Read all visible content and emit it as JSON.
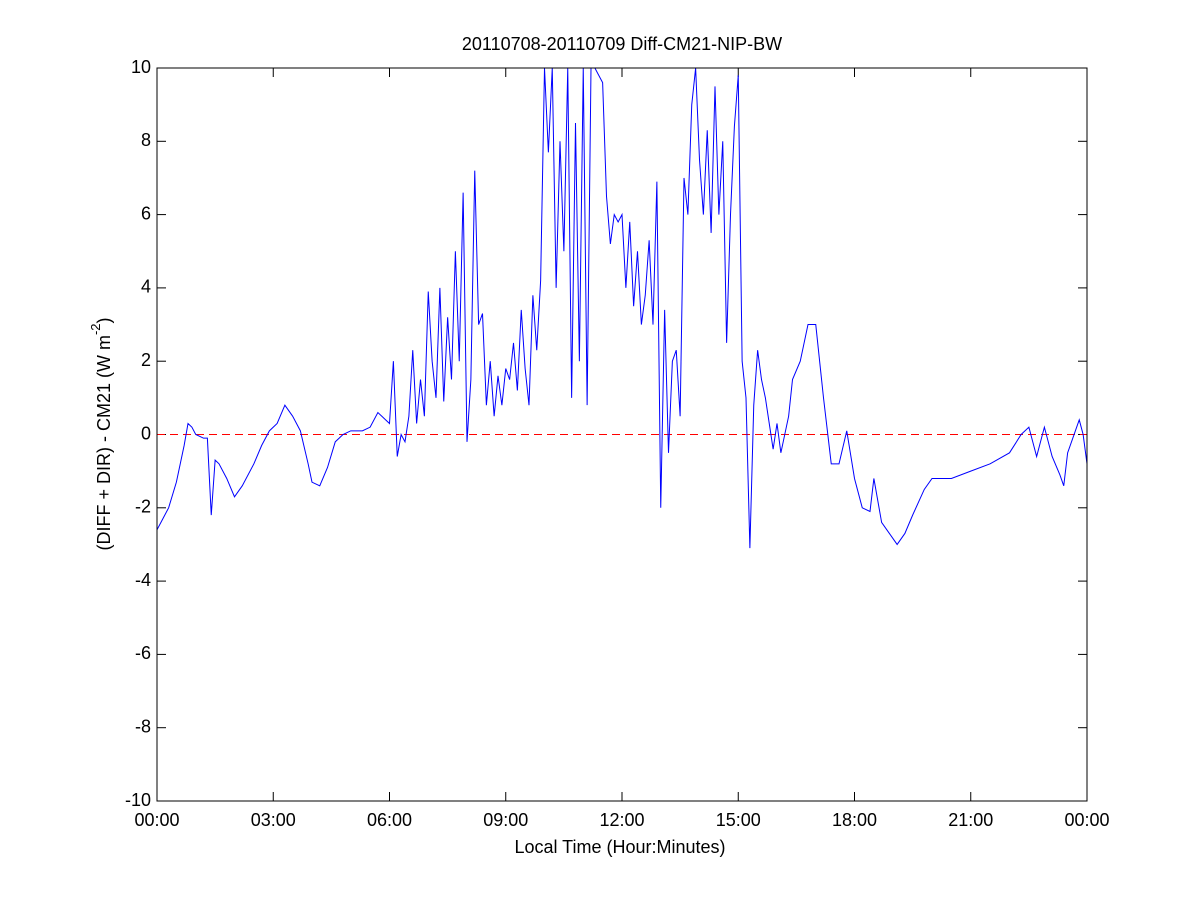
{
  "chart_data": {
    "type": "line",
    "title": "20110708-20110709 Diff-CM21-NIP-BW",
    "xlabel": "Local Time (Hour:Minutes)",
    "ylabel": [
      "(DIFF + DIR) - CM21 (W m",
      "-2",
      ")"
    ],
    "x": [
      0.0,
      0.1,
      0.3,
      0.5,
      0.7,
      0.8,
      0.9,
      1.0,
      1.2,
      1.3,
      1.4,
      1.5,
      1.6,
      1.8,
      2.0,
      2.2,
      2.5,
      2.7,
      2.9,
      3.1,
      3.3,
      3.5,
      3.7,
      3.9,
      4.0,
      4.2,
      4.4,
      4.6,
      4.8,
      5.0,
      5.3,
      5.5,
      5.7,
      5.9,
      6.0,
      6.1,
      6.2,
      6.3,
      6.4,
      6.5,
      6.6,
      6.7,
      6.8,
      6.9,
      7.0,
      7.1,
      7.2,
      7.3,
      7.4,
      7.5,
      7.6,
      7.7,
      7.8,
      7.9,
      8.0,
      8.1,
      8.2,
      8.3,
      8.4,
      8.5,
      8.6,
      8.7,
      8.8,
      8.9,
      9.0,
      9.1,
      9.2,
      9.3,
      9.4,
      9.5,
      9.6,
      9.7,
      9.8,
      9.9,
      10.0,
      10.1,
      10.2,
      10.3,
      10.4,
      10.5,
      10.6,
      10.7,
      10.8,
      10.9,
      11.0,
      11.1,
      11.2,
      11.3,
      11.5,
      11.6,
      11.7,
      11.8,
      11.9,
      12.0,
      12.1,
      12.2,
      12.3,
      12.4,
      12.5,
      12.6,
      12.7,
      12.8,
      12.9,
      13.0,
      13.1,
      13.2,
      13.3,
      13.4,
      13.5,
      13.6,
      13.7,
      13.8,
      13.9,
      14.0,
      14.1,
      14.2,
      14.3,
      14.4,
      14.5,
      14.6,
      14.7,
      14.8,
      14.9,
      15.0,
      15.1,
      15.2,
      15.3,
      15.4,
      15.5,
      15.6,
      15.7,
      15.8,
      15.9,
      16.0,
      16.1,
      16.3,
      16.4,
      16.6,
      16.8,
      17.0,
      17.2,
      17.4,
      17.6,
      17.8,
      18.0,
      18.2,
      18.4,
      18.5,
      18.7,
      18.9,
      19.1,
      19.3,
      19.5,
      19.8,
      20.0,
      20.5,
      21.0,
      21.5,
      22.0,
      22.3,
      22.5,
      22.7,
      22.9,
      23.1,
      23.3,
      23.4,
      23.5,
      23.7,
      23.8,
      23.9,
      24.0
    ],
    "values": [
      -2.6,
      -2.4,
      -2.0,
      -1.3,
      -0.3,
      0.3,
      0.2,
      0.0,
      -0.1,
      -0.1,
      -2.2,
      -0.7,
      -0.8,
      -1.2,
      -1.7,
      -1.4,
      -0.8,
      -0.3,
      0.1,
      0.3,
      0.8,
      0.5,
      0.1,
      -0.8,
      -1.3,
      -1.4,
      -0.9,
      -0.2,
      0.0,
      0.1,
      0.1,
      0.2,
      0.6,
      0.4,
      0.3,
      2.0,
      -0.6,
      0.0,
      -0.2,
      0.5,
      2.3,
      0.3,
      1.5,
      0.5,
      3.9,
      2.0,
      1.0,
      4.0,
      0.9,
      3.2,
      1.5,
      5.0,
      2.0,
      6.6,
      -0.2,
      1.5,
      7.2,
      3.0,
      3.3,
      0.8,
      2.0,
      0.5,
      1.6,
      0.8,
      1.8,
      1.5,
      2.5,
      1.2,
      3.4,
      1.8,
      0.8,
      3.8,
      2.3,
      4.2,
      10.0,
      7.7,
      10.0,
      4.0,
      8.0,
      5.0,
      10.0,
      1.0,
      8.5,
      2.0,
      10.0,
      0.8,
      10.0,
      10.0,
      9.6,
      6.5,
      5.2,
      6.0,
      5.8,
      6.0,
      4.0,
      5.8,
      3.5,
      5.0,
      3.0,
      3.8,
      5.3,
      3.0,
      6.9,
      -2.0,
      3.4,
      -0.5,
      2.0,
      2.3,
      0.5,
      7.0,
      6.0,
      9.0,
      10.0,
      7.5,
      6.0,
      8.3,
      5.5,
      9.5,
      6.0,
      8.0,
      2.5,
      6.0,
      8.4,
      9.8,
      2.0,
      1.0,
      -3.1,
      0.8,
      2.3,
      1.5,
      1.0,
      0.3,
      -0.4,
      0.3,
      -0.5,
      0.5,
      1.5,
      2.0,
      3.0,
      3.0,
      1.0,
      -0.8,
      -0.8,
      0.1,
      -1.2,
      -2.0,
      -2.1,
      -1.2,
      -2.4,
      -2.7,
      -3.0,
      -2.7,
      -2.2,
      -1.5,
      -1.2,
      -1.2,
      -1.0,
      -0.8,
      -0.5,
      0.0,
      0.2,
      -0.6,
      0.2,
      -0.6,
      -1.1,
      -1.4,
      -0.5,
      0.1,
      0.4,
      0.0,
      -0.8
    ],
    "color": "#0000ff",
    "reference_line": {
      "value": 0,
      "color": "#ff0000"
    },
    "xlim": [
      0,
      24
    ],
    "xticks": [
      {
        "value": 0,
        "label": "00:00"
      },
      {
        "value": 3,
        "label": "03:00"
      },
      {
        "value": 6,
        "label": "06:00"
      },
      {
        "value": 9,
        "label": "09:00"
      },
      {
        "value": 12,
        "label": "12:00"
      },
      {
        "value": 15,
        "label": "15:00"
      },
      {
        "value": 18,
        "label": "18:00"
      },
      {
        "value": 21,
        "label": "21:00"
      },
      {
        "value": 24,
        "label": "00:00"
      }
    ],
    "ylim": [
      -10,
      10
    ],
    "yticks": [
      -10,
      -8,
      -6,
      -4,
      -2,
      0,
      2,
      4,
      6,
      8,
      10
    ],
    "grid": false
  }
}
